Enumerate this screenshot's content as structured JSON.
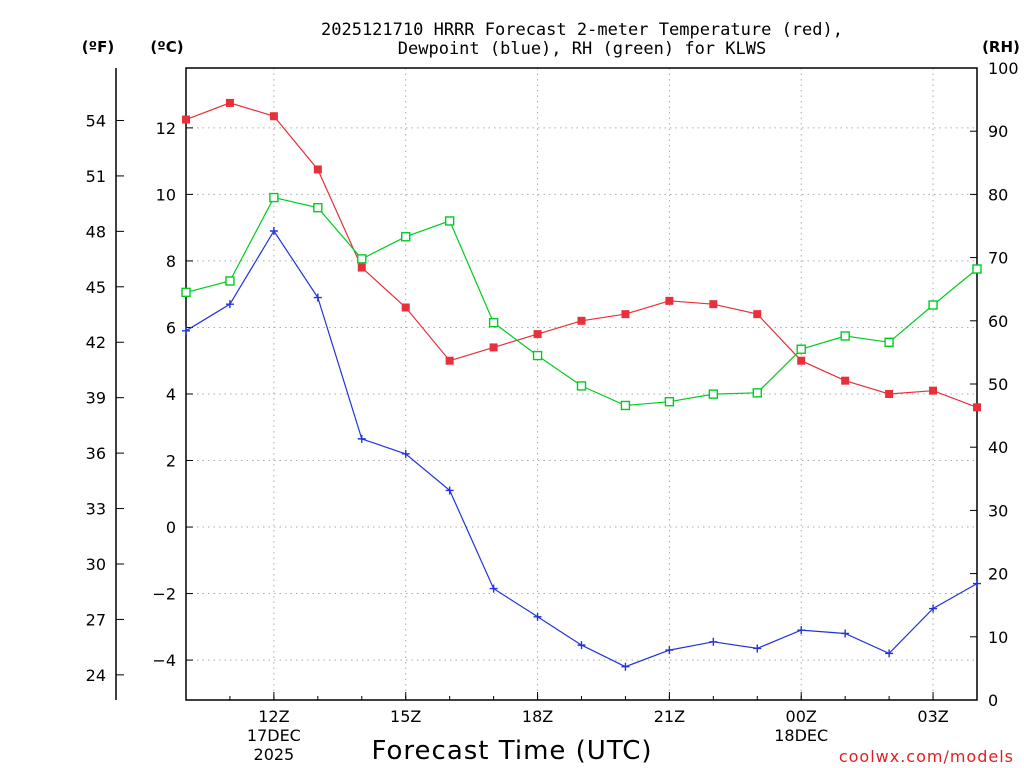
{
  "chart_data": {
    "type": "line",
    "title_line1": "2025121710 HRRR Forecast 2-meter Temperature (red),",
    "title_line2": "Dewpoint (blue), RH (green) for KLWS",
    "xlabel": "Forecast Time (UTC)",
    "credit": "coolwx.com/models",
    "units": {
      "fahrenheit": "(ºF)",
      "celsius": "(ºC)",
      "rh": "(RH)"
    },
    "x_hours": [
      10,
      11,
      12,
      13,
      14,
      15,
      16,
      17,
      18,
      19,
      20,
      21,
      22,
      23,
      24,
      25,
      26,
      27,
      28
    ],
    "xlim": [
      10,
      28
    ],
    "x_ticks": [
      {
        "hour": 12,
        "label": "12Z",
        "sub1": "17DEC",
        "sub2": "2025"
      },
      {
        "hour": 15,
        "label": "15Z",
        "sub1": "",
        "sub2": ""
      },
      {
        "hour": 18,
        "label": "18Z",
        "sub1": "",
        "sub2": ""
      },
      {
        "hour": 21,
        "label": "21Z",
        "sub1": "",
        "sub2": ""
      },
      {
        "hour": 24,
        "label": "00Z",
        "sub1": "18DEC",
        "sub2": ""
      },
      {
        "hour": 27,
        "label": "03Z",
        "sub1": "",
        "sub2": ""
      }
    ],
    "celsius_axis": {
      "lim": [
        -5.2,
        13.8
      ],
      "ticks": [
        "12",
        "10",
        "8",
        "6",
        "4",
        "2",
        "0",
        "−2",
        "−4"
      ],
      "tick_values": [
        12,
        10,
        8,
        6,
        4,
        2,
        0,
        -2,
        -4
      ]
    },
    "fahrenheit_axis": {
      "ticks": [
        "54",
        "51",
        "48",
        "45",
        "42",
        "39",
        "36",
        "33",
        "30",
        "27",
        "24"
      ],
      "tick_values": [
        54,
        51,
        48,
        45,
        42,
        39,
        36,
        33,
        30,
        27,
        24
      ]
    },
    "rh_axis": {
      "lim": [
        0,
        100
      ],
      "ticks": [
        "100",
        "90",
        "80",
        "70",
        "60",
        "50",
        "40",
        "30",
        "20",
        "10",
        "0"
      ],
      "tick_values": [
        100,
        90,
        80,
        70,
        60,
        50,
        40,
        30,
        20,
        10,
        0
      ]
    },
    "series": [
      {
        "name": "2-meter Temperature",
        "axis": "celsius",
        "color": "#e8303a",
        "marker": "filled-square",
        "values": [
          12.25,
          12.75,
          12.35,
          10.75,
          7.8,
          6.6,
          5.0,
          5.4,
          5.8,
          6.2,
          6.4,
          6.8,
          6.7,
          6.4,
          5.0,
          4.4,
          4.0,
          4.1,
          3.6
        ]
      },
      {
        "name": "Dewpoint",
        "axis": "celsius",
        "color": "#2233dd",
        "marker": "plus",
        "values": [
          5.9,
          6.7,
          8.9,
          6.9,
          2.65,
          2.2,
          1.1,
          -1.85,
          -2.7,
          -3.55,
          -4.2,
          -3.7,
          -3.45,
          -3.65,
          -3.1,
          -3.2,
          -3.8,
          -2.45,
          -1.7
        ]
      },
      {
        "name": "RH",
        "axis": "rh",
        "color": "#00cc22",
        "marker": "open-square",
        "values": [
          64.5,
          66.3,
          79.5,
          77.9,
          69.8,
          73.3,
          75.8,
          59.7,
          54.5,
          49.7,
          46.6,
          47.2,
          48.4,
          48.6,
          55.5,
          57.6,
          56.6,
          62.5,
          68.2
        ]
      }
    ]
  }
}
